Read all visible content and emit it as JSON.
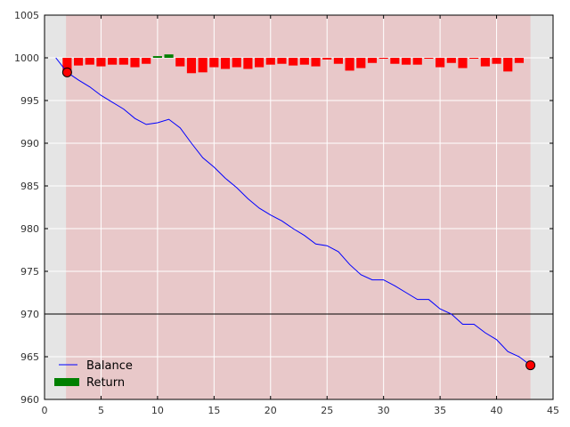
{
  "chart_data": {
    "type": "line",
    "title": "",
    "xlabel": "",
    "ylabel": "",
    "xlim": [
      0,
      45
    ],
    "ylim": [
      960,
      1005
    ],
    "x_ticks": [
      0,
      5,
      10,
      15,
      20,
      25,
      30,
      35,
      40,
      45
    ],
    "y_ticks": [
      960,
      965,
      970,
      975,
      980,
      985,
      990,
      995,
      1000,
      1005
    ],
    "grid": true,
    "legend_position": "lower-left",
    "colors": {
      "background": "#e5e5e5",
      "drawdown_shade": "#e8c8c9",
      "balance_line": "#0000ff",
      "negative_return": "#ff0000",
      "positive_return": "#008000",
      "reference_line": "#000000",
      "marker": "#ff0000"
    },
    "drawdown_span": [
      1.9,
      43
    ],
    "reference_line_y": 970,
    "series": [
      {
        "name": "Balance",
        "type": "line",
        "x": [
          1,
          2,
          3,
          4,
          5,
          6,
          7,
          8,
          9,
          10,
          11,
          12,
          13,
          14,
          15,
          16,
          17,
          18,
          19,
          20,
          21,
          22,
          23,
          24,
          25,
          26,
          27,
          28,
          29,
          30,
          31,
          32,
          33,
          34,
          35,
          36,
          37,
          38,
          39,
          40,
          41,
          42,
          43
        ],
        "y": [
          1000,
          998.3,
          997.4,
          996.6,
          995.6,
          994.8,
          994.0,
          992.9,
          992.2,
          992.4,
          992.8,
          991.8,
          990.0,
          988.3,
          987.2,
          985.9,
          984.8,
          983.5,
          982.4,
          981.6,
          980.9,
          980.0,
          979.2,
          978.2,
          978.0,
          977.3,
          975.8,
          974.6,
          974.0,
          974.0,
          973.3,
          972.5,
          971.7,
          971.7,
          970.6,
          970.0,
          968.8,
          968.8,
          967.8,
          967.0,
          965.6,
          965.0,
          964.0
        ]
      },
      {
        "name": "Return",
        "type": "bar",
        "x": [
          2,
          3,
          4,
          5,
          6,
          7,
          8,
          9,
          10,
          11,
          12,
          13,
          14,
          15,
          16,
          17,
          18,
          19,
          20,
          21,
          22,
          23,
          24,
          25,
          26,
          27,
          28,
          29,
          30,
          31,
          32,
          33,
          34,
          35,
          36,
          37,
          38,
          39,
          40,
          41,
          42
        ],
        "y": [
          -1.7,
          -0.9,
          -0.8,
          -1.0,
          -0.8,
          -0.8,
          -1.1,
          -0.7,
          0.2,
          0.4,
          -1.0,
          -1.8,
          -1.7,
          -1.1,
          -1.3,
          -1.1,
          -1.3,
          -1.1,
          -0.8,
          -0.7,
          -0.9,
          -0.8,
          -1.0,
          -0.2,
          -0.7,
          -1.5,
          -1.2,
          -0.6,
          -0.1,
          -0.7,
          -0.8,
          -0.8,
          -0.1,
          -1.1,
          -0.6,
          -1.2,
          -0.1,
          -1.0,
          -0.7,
          -1.6,
          -0.6
        ]
      }
    ],
    "markers": [
      {
        "x": 2,
        "y": 998.3
      },
      {
        "x": 43,
        "y": 964.0
      }
    ],
    "legend": [
      {
        "label": "Balance",
        "kind": "line"
      },
      {
        "label": "Return",
        "kind": "bar"
      }
    ]
  }
}
